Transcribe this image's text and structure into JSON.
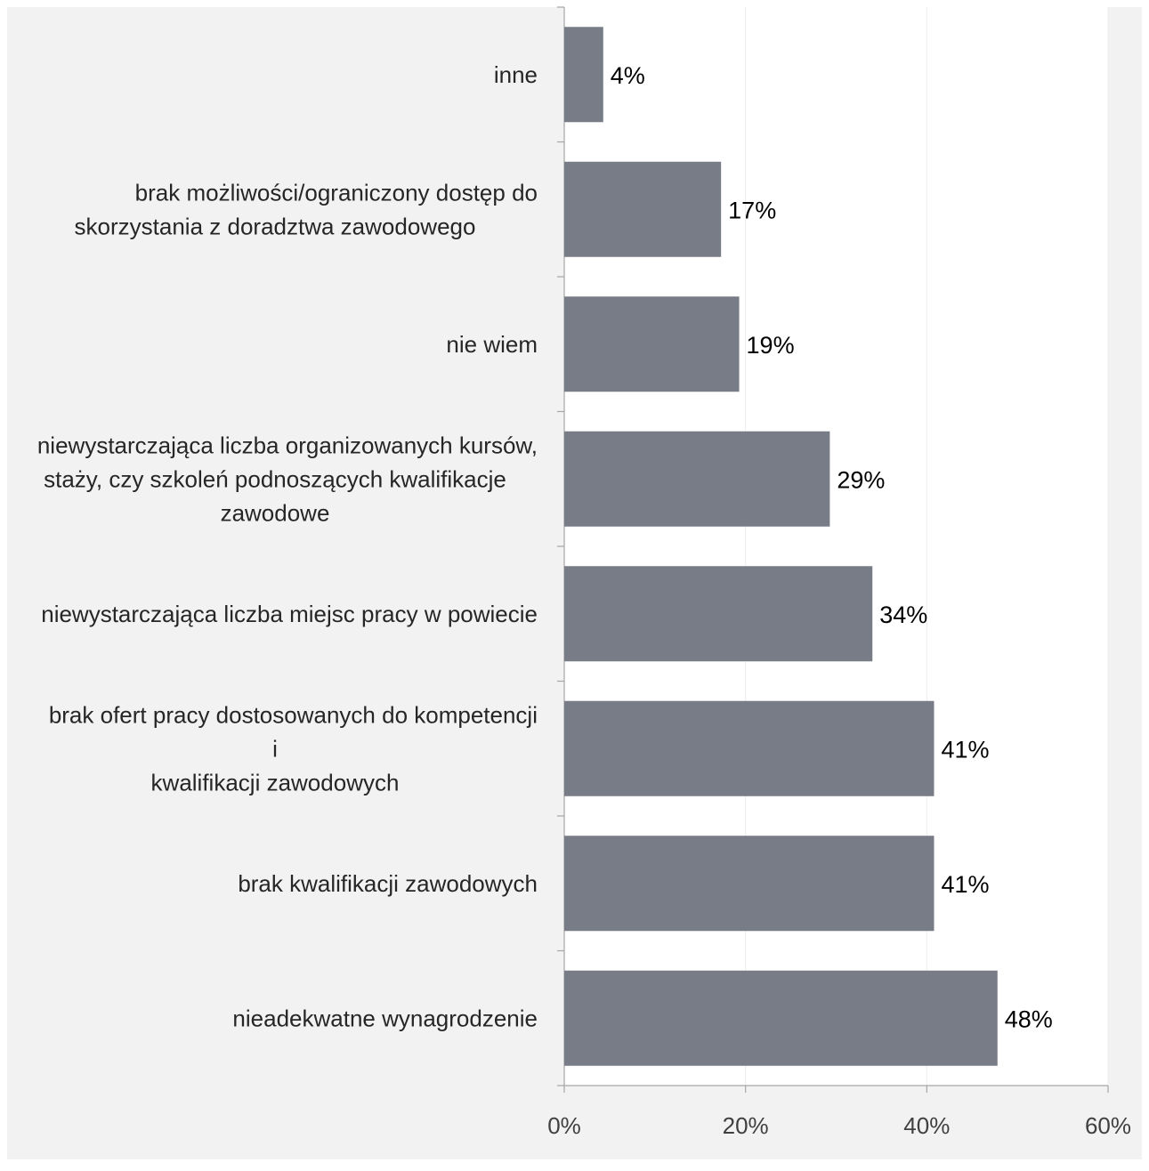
{
  "chart_data": {
    "type": "bar",
    "orientation": "horizontal",
    "categories": [
      [
        "inne"
      ],
      [
        "brak możliwości/ograniczony dostęp do",
        "skorzystania z doradztwa zawodowego"
      ],
      [
        "nie wiem"
      ],
      [
        "niewystarczająca liczba organizowanych kursów,",
        "staży, czy szkoleń podnoszących kwalifikacje",
        "zawodowe"
      ],
      [
        "niewystarczająca liczba miejsc pracy w powiecie"
      ],
      [
        "brak ofert pracy dostosowanych do kompetencji",
        "i",
        "kwalifikacji zawodowych"
      ],
      [
        "brak kwalifikacji zawodowych"
      ],
      [
        "nieadekwatne wynagrodzenie"
      ]
    ],
    "values": [
      4.3,
      17.3,
      19.3,
      29.3,
      34,
      40.8,
      40.8,
      47.8
    ],
    "data_labels": [
      "4%",
      "17%",
      "19%",
      "29%",
      "34%",
      "41%",
      "41%",
      "48%"
    ],
    "xlim": [
      0,
      60
    ],
    "xticks": [
      0,
      20,
      40,
      60
    ],
    "xtick_labels": [
      "0%",
      "20%",
      "40%",
      "60%"
    ],
    "title": "",
    "xlabel": "",
    "ylabel": "",
    "grid": true,
    "legend": "none",
    "colors": {
      "bar": "#787c86",
      "plot_background": "#ffffff",
      "label_panel_background": "#f2f2f2",
      "axis": "#a6a6a6",
      "grid": "#ececec"
    }
  }
}
